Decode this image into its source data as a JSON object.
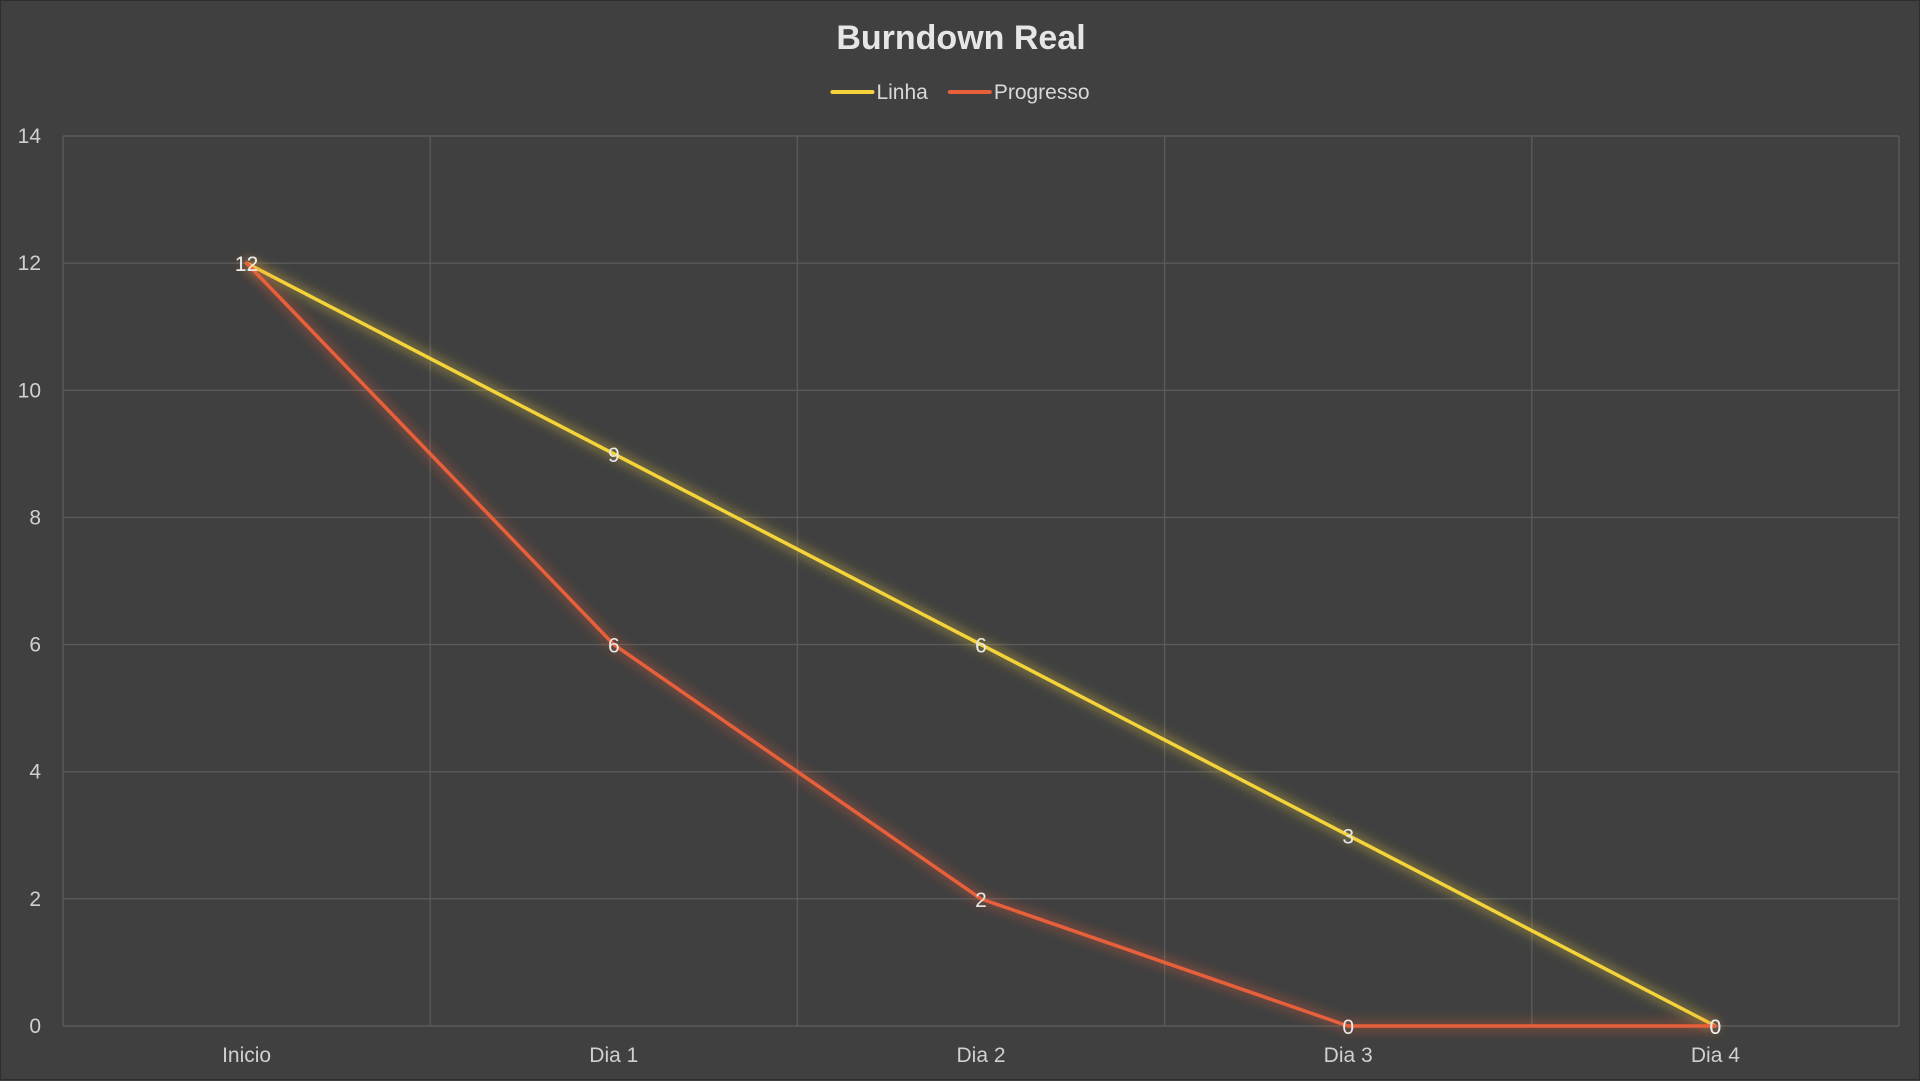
{
  "chart_data": {
    "type": "line",
    "title": "Burndown Real",
    "xlabel": "",
    "ylabel": "",
    "categories": [
      "Inicio",
      "Dia 1",
      "Dia 2",
      "Dia 3",
      "Dia 4"
    ],
    "ylim": [
      0,
      14
    ],
    "yticks": [
      0,
      2,
      4,
      6,
      8,
      10,
      12,
      14
    ],
    "grid": true,
    "legend": "top-center",
    "series": [
      {
        "name": "Linha",
        "color": "#f5d33a",
        "values": [
          12,
          9,
          6,
          3,
          0
        ]
      },
      {
        "name": "Progresso",
        "color": "#e8603a",
        "values": [
          12,
          6,
          2,
          0,
          0
        ]
      }
    ]
  }
}
